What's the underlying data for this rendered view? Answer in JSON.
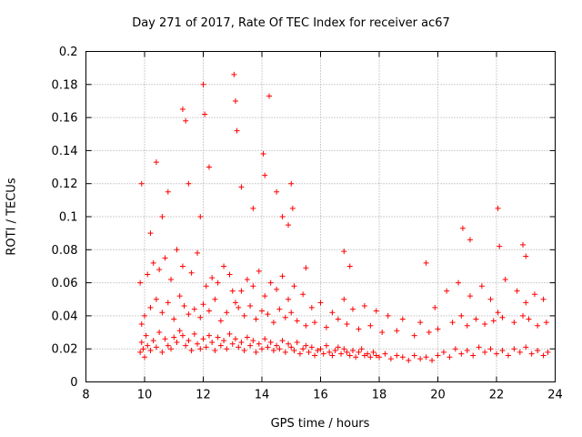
{
  "chart_data": {
    "type": "scatter",
    "title": "Day 271 of 2017, Rate Of TEC Index for receiver ac67",
    "xlabel": "GPS time / hours",
    "ylabel": "ROTI / TECUs",
    "xlim": [
      8,
      24
    ],
    "ylim": [
      0,
      0.2
    ],
    "xticks": [
      "8",
      "10",
      "12",
      "14",
      "16",
      "18",
      "20",
      "22",
      "24"
    ],
    "yticks": [
      "0",
      "0.02",
      "0.04",
      "0.06",
      "0.08",
      "0.1",
      "0.12",
      "0.14",
      "0.16",
      "0.18",
      "0.2"
    ],
    "grid": true,
    "marker": "+",
    "color": "#ff0000",
    "series": [
      {
        "name": "ROTI",
        "x": [
          9.85,
          9.9,
          9.95,
          10.0,
          10.05,
          10.1,
          10.2,
          10.3,
          10.4,
          10.5,
          10.6,
          10.7,
          10.8,
          10.9,
          11.0,
          11.1,
          11.2,
          11.3,
          11.4,
          11.5,
          11.6,
          11.7,
          11.8,
          11.9,
          12.0,
          12.1,
          12.2,
          12.3,
          12.4,
          12.5,
          12.6,
          12.7,
          12.8,
          12.9,
          13.0,
          13.1,
          13.2,
          13.3,
          13.4,
          13.5,
          13.6,
          13.7,
          13.8,
          13.9,
          14.0,
          14.1,
          14.2,
          14.3,
          14.4,
          14.5,
          14.6,
          14.7,
          14.8,
          14.9,
          15.0,
          15.1,
          15.2,
          15.3,
          15.4,
          15.5,
          15.6,
          15.7,
          15.8,
          15.9,
          16.0,
          16.1,
          16.2,
          16.3,
          16.4,
          16.5,
          16.6,
          16.7,
          16.8,
          16.9,
          17.0,
          17.1,
          17.2,
          17.3,
          17.4,
          17.5,
          17.6,
          17.7,
          17.8,
          17.9,
          18.0,
          18.2,
          18.4,
          18.6,
          18.8,
          19.0,
          19.2,
          19.4,
          19.6,
          19.8,
          20.0,
          20.2,
          20.4,
          20.6,
          20.8,
          21.0,
          21.2,
          21.4,
          21.6,
          21.8,
          22.0,
          22.2,
          22.4,
          22.6,
          22.8,
          23.0,
          23.2,
          23.4,
          23.6,
          23.75,
          9.9,
          10.0,
          10.2,
          10.4,
          10.6,
          10.8,
          11.0,
          11.2,
          11.35,
          11.5,
          11.7,
          11.9,
          12.0,
          12.2,
          12.4,
          12.6,
          12.8,
          13.0,
          13.1,
          13.2,
          13.4,
          13.6,
          13.8,
          14.0,
          14.2,
          14.4,
          14.6,
          14.8,
          15.0,
          15.2,
          15.5,
          15.8,
          16.2,
          16.6,
          16.9,
          17.3,
          17.7,
          18.1,
          18.6,
          19.2,
          19.7,
          20.0,
          20.5,
          20.8,
          21.0,
          21.3,
          21.6,
          21.9,
          22.05,
          22.2,
          22.6,
          22.9,
          23.1,
          23.4,
          23.7,
          9.85,
          10.1,
          10.3,
          10.5,
          10.7,
          10.9,
          11.1,
          11.3,
          11.6,
          11.8,
          12.1,
          12.3,
          12.5,
          12.7,
          12.9,
          13.3,
          13.5,
          13.7,
          13.9,
          14.1,
          14.3,
          14.5,
          14.7,
          14.9,
          15.1,
          15.4,
          15.7,
          16.0,
          16.4,
          16.8,
          17.1,
          17.5,
          17.9,
          18.3,
          18.8,
          19.4,
          19.9,
          20.3,
          20.7,
          21.1,
          21.5,
          21.8,
          22.3,
          22.7,
          23.0,
          23.3,
          23.6,
          9.9,
          10.2,
          10.4,
          10.6,
          10.8,
          11.3,
          11.4,
          11.5,
          11.9,
          12.0,
          12.05,
          12.2,
          13.05,
          13.1,
          13.15,
          13.3,
          13.7,
          14.05,
          14.1,
          14.25,
          14.5,
          14.7,
          14.9,
          15.0,
          15.05,
          15.5,
          16.8,
          17.0,
          19.6,
          20.85,
          21.1,
          22.05,
          22.1,
          22.9,
          23.0
        ],
        "y": [
          0.018,
          0.024,
          0.02,
          0.015,
          0.028,
          0.022,
          0.019,
          0.025,
          0.021,
          0.03,
          0.018,
          0.026,
          0.022,
          0.02,
          0.027,
          0.024,
          0.031,
          0.028,
          0.022,
          0.025,
          0.019,
          0.029,
          0.023,
          0.02,
          0.026,
          0.021,
          0.028,
          0.024,
          0.019,
          0.027,
          0.022,
          0.025,
          0.02,
          0.029,
          0.023,
          0.026,
          0.021,
          0.024,
          0.019,
          0.027,
          0.022,
          0.025,
          0.018,
          0.023,
          0.02,
          0.026,
          0.021,
          0.024,
          0.019,
          0.022,
          0.02,
          0.025,
          0.018,
          0.023,
          0.021,
          0.019,
          0.024,
          0.017,
          0.02,
          0.022,
          0.018,
          0.021,
          0.016,
          0.019,
          0.02,
          0.017,
          0.022,
          0.018,
          0.016,
          0.019,
          0.021,
          0.017,
          0.02,
          0.018,
          0.016,
          0.019,
          0.015,
          0.018,
          0.02,
          0.016,
          0.017,
          0.015,
          0.018,
          0.016,
          0.015,
          0.017,
          0.014,
          0.016,
          0.015,
          0.013,
          0.016,
          0.014,
          0.015,
          0.013,
          0.016,
          0.018,
          0.015,
          0.02,
          0.017,
          0.019,
          0.016,
          0.021,
          0.018,
          0.02,
          0.017,
          0.019,
          0.016,
          0.02,
          0.018,
          0.021,
          0.017,
          0.019,
          0.016,
          0.018,
          0.035,
          0.04,
          0.045,
          0.05,
          0.042,
          0.048,
          0.038,
          0.052,
          0.046,
          0.041,
          0.044,
          0.039,
          0.047,
          0.043,
          0.05,
          0.037,
          0.042,
          0.055,
          0.048,
          0.045,
          0.04,
          0.046,
          0.038,
          0.043,
          0.041,
          0.036,
          0.044,
          0.039,
          0.042,
          0.037,
          0.034,
          0.036,
          0.033,
          0.038,
          0.035,
          0.032,
          0.034,
          0.03,
          0.031,
          0.028,
          0.03,
          0.032,
          0.036,
          0.04,
          0.034,
          0.038,
          0.035,
          0.037,
          0.042,
          0.039,
          0.036,
          0.04,
          0.038,
          0.034,
          0.036,
          0.06,
          0.065,
          0.072,
          0.068,
          0.075,
          0.062,
          0.08,
          0.07,
          0.066,
          0.078,
          0.058,
          0.063,
          0.06,
          0.07,
          0.065,
          0.055,
          0.062,
          0.058,
          0.067,
          0.052,
          0.06,
          0.056,
          0.064,
          0.05,
          0.058,
          0.053,
          0.045,
          0.048,
          0.042,
          0.05,
          0.044,
          0.046,
          0.043,
          0.04,
          0.038,
          0.036,
          0.045,
          0.055,
          0.06,
          0.052,
          0.058,
          0.05,
          0.062,
          0.055,
          0.048,
          0.053,
          0.05,
          0.12,
          0.09,
          0.133,
          0.1,
          0.115,
          0.165,
          0.158,
          0.12,
          0.1,
          0.18,
          0.162,
          0.13,
          0.186,
          0.17,
          0.152,
          0.118,
          0.105,
          0.138,
          0.125,
          0.173,
          0.115,
          0.1,
          0.095,
          0.12,
          0.105,
          0.069,
          0.079,
          0.07,
          0.072,
          0.093,
          0.086,
          0.105,
          0.082,
          0.083,
          0.076
        ]
      }
    ]
  }
}
